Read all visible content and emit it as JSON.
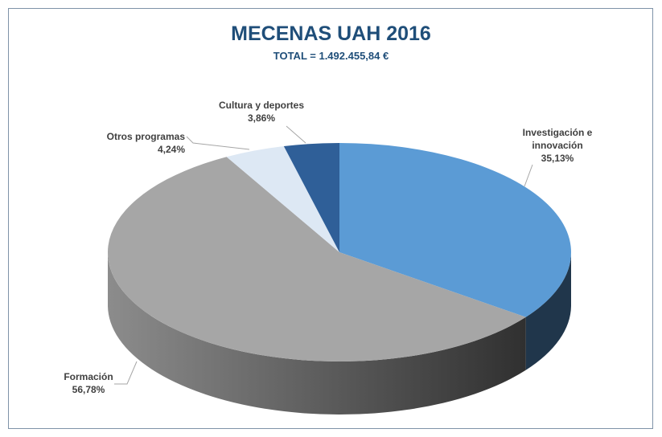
{
  "chart_data": {
    "type": "pie3d",
    "title": "MECENAS UAH 2016",
    "subtitle": "TOTAL = 1.492.455,84 €",
    "categories": [
      "Investigación e innovación",
      "Formación",
      "Otros programas",
      "Cultura y deportes"
    ],
    "values": [
      35.13,
      56.78,
      4.24,
      3.86
    ],
    "value_labels": [
      "35,13%",
      "56,78%",
      "4,24%",
      "3,86%"
    ],
    "colors": [
      "#5b9bd5",
      "#a6a6a6",
      "#dde8f4",
      "#2f5f98"
    ]
  }
}
